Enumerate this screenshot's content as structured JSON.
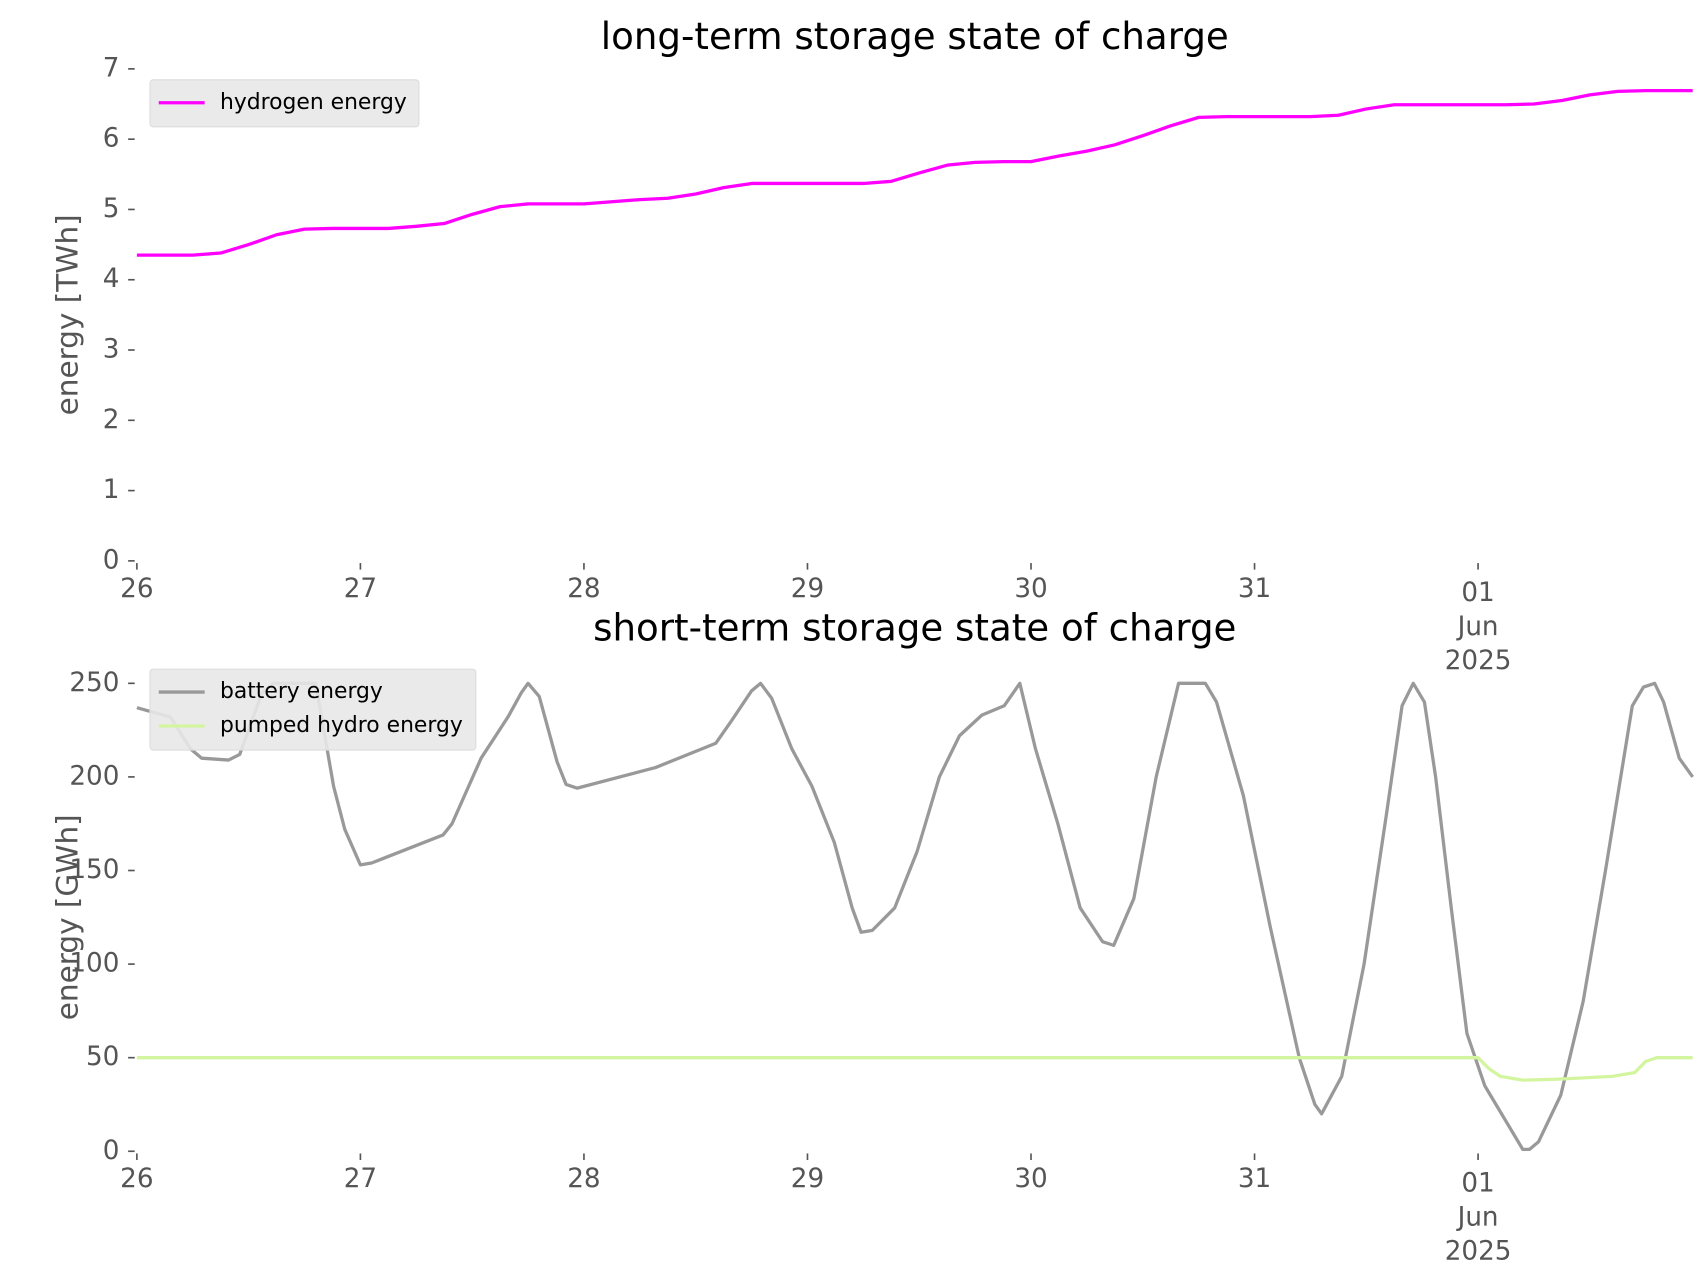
{
  "chart_data": [
    {
      "type": "line",
      "title": "long-term storage state of charge",
      "ylabel": "energy [TWh]",
      "xlim": [
        0,
        6.96
      ],
      "ylim": [
        0,
        7
      ],
      "yticks": [
        0,
        1,
        2,
        3,
        4,
        5,
        6,
        7
      ],
      "xticks": [
        {
          "value": 0,
          "label": "26"
        },
        {
          "value": 1,
          "label": "27"
        },
        {
          "value": 2,
          "label": "28"
        },
        {
          "value": 3,
          "label": "29"
        },
        {
          "value": 4,
          "label": "30"
        },
        {
          "value": 5,
          "label": "31"
        },
        {
          "value": 6,
          "label": [
            "01",
            "Jun",
            "2025"
          ]
        }
      ],
      "legend": "upper left",
      "series": [
        {
          "name": "hydrogen energy",
          "color": "#ff00ff",
          "x": [
            0,
            0.125,
            0.25,
            0.375,
            0.5,
            0.625,
            0.75,
            0.875,
            1,
            1.125,
            1.25,
            1.375,
            1.5,
            1.625,
            1.75,
            1.875,
            2,
            2.125,
            2.25,
            2.375,
            2.5,
            2.625,
            2.75,
            2.875,
            3,
            3.125,
            3.25,
            3.375,
            3.5,
            3.625,
            3.75,
            3.875,
            4,
            4.125,
            4.25,
            4.375,
            4.5,
            4.625,
            4.75,
            4.875,
            5,
            5.125,
            5.25,
            5.375,
            5.5,
            5.625,
            5.75,
            5.875,
            6,
            6.125,
            6.25,
            6.375,
            6.5,
            6.625,
            6.75,
            6.875,
            6.96
          ],
          "values": [
            4.35,
            4.35,
            4.35,
            4.38,
            4.5,
            4.64,
            4.72,
            4.73,
            4.73,
            4.73,
            4.76,
            4.8,
            4.93,
            5.04,
            5.08,
            5.08,
            5.08,
            5.11,
            5.14,
            5.16,
            5.22,
            5.31,
            5.37,
            5.37,
            5.37,
            5.37,
            5.37,
            5.4,
            5.52,
            5.63,
            5.67,
            5.68,
            5.68,
            5.76,
            5.83,
            5.92,
            6.05,
            6.19,
            6.31,
            6.32,
            6.32,
            6.32,
            6.32,
            6.34,
            6.43,
            6.49,
            6.49,
            6.49,
            6.49,
            6.49,
            6.5,
            6.55,
            6.63,
            6.68,
            6.69,
            6.69,
            6.69
          ]
        }
      ]
    },
    {
      "type": "line",
      "title": "short-term storage state of charge",
      "ylabel": "energy [GWh]",
      "xlim": [
        0,
        6.96
      ],
      "ylim": [
        0,
        250
      ],
      "yticks": [
        0,
        50,
        100,
        150,
        200,
        250
      ],
      "xticks": [
        {
          "value": 0,
          "label": "26"
        },
        {
          "value": 1,
          "label": "27"
        },
        {
          "value": 2,
          "label": "28"
        },
        {
          "value": 3,
          "label": "29"
        },
        {
          "value": 4,
          "label": "30"
        },
        {
          "value": 5,
          "label": "31"
        },
        {
          "value": 6,
          "label": [
            "01",
            "Jun",
            "2025"
          ]
        }
      ],
      "legend": "upper left",
      "series": [
        {
          "name": "battery energy",
          "color": "#999999",
          "x": [
            0,
            0.15,
            0.24,
            0.29,
            0.41,
            0.46,
            0.56,
            0.61,
            0.8,
            0.88,
            0.93,
            1.0,
            1.05,
            1.37,
            1.41,
            1.54,
            1.66,
            1.72,
            1.75,
            1.8,
            1.88,
            1.92,
            1.97,
            2.32,
            2.59,
            2.66,
            2.75,
            2.79,
            2.84,
            2.93,
            3.02,
            3.12,
            3.2,
            3.24,
            3.29,
            3.39,
            3.49,
            3.59,
            3.68,
            3.78,
            3.88,
            3.95,
            4.02,
            4.12,
            4.22,
            4.32,
            4.37,
            4.46,
            4.56,
            4.66,
            4.78,
            4.83,
            4.95,
            5.07,
            5.2,
            5.27,
            5.3,
            5.39,
            5.49,
            5.59,
            5.66,
            5.71,
            5.76,
            5.81,
            5.88,
            5.95,
            6.03,
            6.13,
            6.2,
            6.23,
            6.27,
            6.37,
            6.47,
            6.57,
            6.69,
            6.74,
            6.79,
            6.83,
            6.9,
            6.96
          ],
          "values": [
            237,
            232,
            215,
            210,
            209,
            212,
            245,
            250,
            250,
            195,
            172,
            153,
            154,
            169,
            175,
            210,
            232,
            245,
            250,
            243,
            208,
            196,
            194,
            205,
            218,
            230,
            246,
            250,
            242,
            215,
            195,
            165,
            130,
            117,
            118,
            130,
            160,
            200,
            222,
            233,
            238,
            250,
            215,
            175,
            130,
            112,
            110,
            135,
            200,
            250,
            250,
            240,
            190,
            120,
            50,
            25,
            20,
            40,
            100,
            180,
            238,
            250,
            240,
            200,
            130,
            63,
            35,
            15,
            1,
            1,
            5,
            30,
            80,
            150,
            238,
            248,
            250,
            240,
            210,
            200
          ]
        },
        {
          "name": "pumped hydro energy",
          "color": "#d4f5a0",
          "x": [
            0,
            6.0,
            6.05,
            6.1,
            6.2,
            6.35,
            6.6,
            6.7,
            6.75,
            6.8,
            6.96
          ],
          "values": [
            50,
            50,
            44,
            40,
            38,
            38.5,
            40,
            42,
            48,
            50,
            50
          ]
        }
      ]
    }
  ]
}
